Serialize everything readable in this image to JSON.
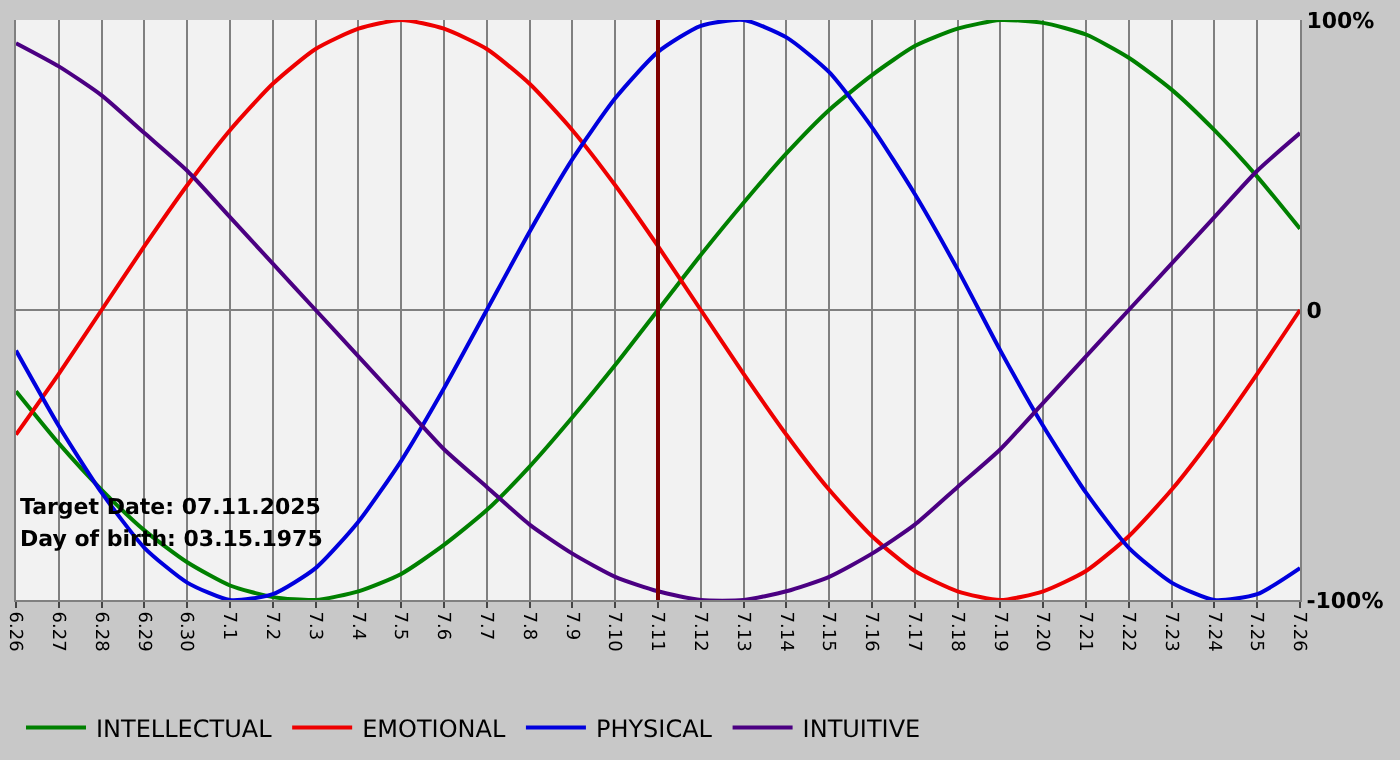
{
  "chart_data": {
    "type": "line",
    "categories": [
      "6.26",
      "6.27",
      "6.28",
      "6.29",
      "6.30",
      "7.1",
      "7.2",
      "7.3",
      "7.4",
      "7.5",
      "7.6",
      "7.7",
      "7.8",
      "7.9",
      "7.10",
      "7.11",
      "7.12",
      "7.13",
      "7.14",
      "7.15",
      "7.16",
      "7.17",
      "7.18",
      "7.19",
      "7.20",
      "7.21",
      "7.22",
      "7.23",
      "7.24",
      "7.25",
      "7.26"
    ],
    "series": [
      {
        "name": "INTELLECTUAL",
        "color": "#008000",
        "values": [
          -28,
          -46,
          -62,
          -76,
          -87,
          -95,
          -99,
          -100,
          -97,
          -91,
          -81,
          -69,
          -54,
          -37,
          -19,
          0,
          19,
          37,
          54,
          69,
          81,
          91,
          97,
          100,
          99,
          95,
          87,
          76,
          62,
          46,
          28
        ]
      },
      {
        "name": "EMOTIONAL",
        "color": "#ee0000",
        "values": [
          -43,
          -22,
          0,
          22,
          43,
          62,
          78,
          90,
          97,
          100,
          97,
          90,
          78,
          62,
          43,
          22,
          0,
          -22,
          -43,
          -62,
          -78,
          -90,
          -97,
          -100,
          -97,
          -90,
          -78,
          -62,
          -43,
          -22,
          0
        ]
      },
      {
        "name": "PHYSICAL",
        "color": "#0000dd",
        "values": [
          -14,
          -40,
          -63,
          -82,
          -94,
          -100,
          -98,
          -89,
          -73,
          -52,
          -27,
          0,
          27,
          52,
          73,
          89,
          98,
          100,
          94,
          82,
          63,
          40,
          14,
          -14,
          -40,
          -63,
          -82,
          -94,
          -100,
          -98,
          -89
        ]
      },
      {
        "name": "INTUITIVE",
        "color": "#4b0082",
        "values": [
          92,
          84,
          74,
          61,
          48,
          32,
          16,
          0,
          -16,
          -32,
          -48,
          -61,
          -74,
          -84,
          -92,
          -97,
          -100,
          -100,
          -97,
          -92,
          -84,
          -74,
          -61,
          -48,
          -32,
          -16,
          0,
          16,
          32,
          48,
          61
        ]
      }
    ],
    "ylim": [
      -100,
      100
    ],
    "yticks": [
      {
        "value": 100,
        "label": "100%"
      },
      0,
      {
        "value": -100,
        "label": "-100%"
      }
    ],
    "ref_lines": [
      {
        "axis": "x",
        "value": "7.11",
        "color": "#800000"
      }
    ],
    "annotations": [
      "Target Date: 07.11.2025",
      "Day of birth: 03.15.1975"
    ],
    "grid": true,
    "legend": "bottom",
    "marker": "none",
    "line_style": "solid"
  }
}
